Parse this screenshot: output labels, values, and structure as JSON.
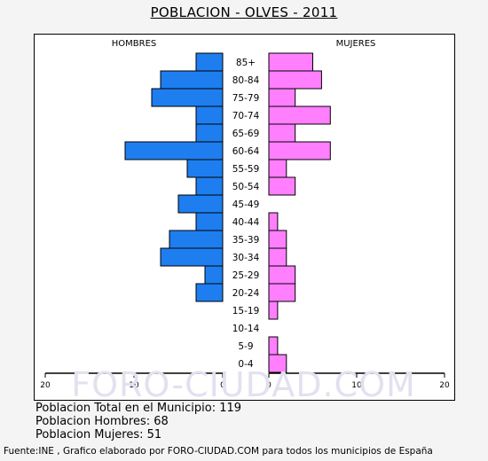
{
  "title": "POBLACION - OLVES - 2011",
  "watermark": "FORO-CIUDAD.COM",
  "summary": {
    "total": "Poblacion Total en el Municipio: 119",
    "men": "Poblacion Hombres: 68",
    "women": "Poblacion Mujeres: 51"
  },
  "footer": "Fuente:INE , Grafico elaborado por FORO-CIUDAD.COM para todos los municipios de España",
  "colors": {
    "men": "#1e7ef0",
    "women": "#ff7fff",
    "outline": "#000000"
  },
  "chart_data": {
    "type": "bar",
    "orientation": "horizontal-population-pyramid",
    "categories": [
      "85+",
      "80-84",
      "75-79",
      "70-74",
      "65-69",
      "60-64",
      "55-59",
      "50-54",
      "45-49",
      "40-44",
      "35-39",
      "30-34",
      "25-29",
      "20-24",
      "15-19",
      "10-14",
      "5-9",
      "0-4"
    ],
    "series": [
      {
        "name": "HOMBRES",
        "values": [
          3,
          7,
          8,
          3,
          3,
          11,
          4,
          3,
          5,
          3,
          6,
          7,
          2,
          3,
          0,
          0,
          0,
          0
        ]
      },
      {
        "name": "MUJERES",
        "values": [
          5,
          6,
          3,
          7,
          3,
          7,
          2,
          3,
          0,
          1,
          2,
          2,
          3,
          3,
          1,
          0,
          1,
          2
        ]
      }
    ],
    "x_ticks_left": [
      "20",
      "10",
      "0"
    ],
    "x_ticks_right": [
      "0",
      "10",
      "20"
    ],
    "xlim": [
      0,
      20
    ],
    "grid": false,
    "legend": "top"
  }
}
